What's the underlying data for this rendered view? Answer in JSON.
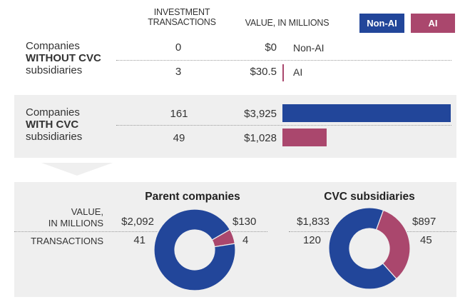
{
  "colors": {
    "non_ai": "#22469A",
    "ai": "#AA476D",
    "panel": "#EFEFEF"
  },
  "header": {
    "transactions_label_line1": "INVESTMENT",
    "transactions_label_line2": "TRANSACTIONS",
    "value_label": "VALUE, IN MILLIONS",
    "legend": [
      {
        "label": "Non-AI",
        "key": "non_ai"
      },
      {
        "label": "AI",
        "key": "ai"
      }
    ]
  },
  "groups": [
    {
      "label_line1": "Companies",
      "label_line2": "WITHOUT CVC",
      "label_line3": "subsidiaries",
      "rows": [
        {
          "category": "Non-AI",
          "transactions": "0",
          "value_text": "$0",
          "value": 0,
          "inline_label": "Non-AI"
        },
        {
          "category": "AI",
          "transactions": "3",
          "value_text": "$30.5",
          "value": 30.5,
          "inline_label": "AI"
        }
      ]
    },
    {
      "label_line1": "Companies",
      "label_line2": "WITH CVC",
      "label_line3": "subsidiaries",
      "rows": [
        {
          "category": "Non-AI",
          "transactions": "161",
          "value_text": "$3,925",
          "value": 3925
        },
        {
          "category": "AI",
          "transactions": "49",
          "value_text": "$1,028",
          "value": 1028
        }
      ]
    }
  ],
  "breakdown": {
    "value_label_line1": "VALUE,",
    "value_label_line2": "IN MILLIONS",
    "transactions_label": "TRANSACTIONS",
    "donuts": [
      {
        "title": "Parent companies",
        "non_ai": {
          "value_text": "$2,092",
          "value": 2092,
          "transactions": "41"
        },
        "ai": {
          "value_text": "$130",
          "value": 130,
          "transactions": "4"
        }
      },
      {
        "title": "CVC subsidiaries",
        "non_ai": {
          "value_text": "$1,833",
          "value": 1833,
          "transactions": "120"
        },
        "ai": {
          "value_text": "$897",
          "value": 897,
          "transactions": "45"
        }
      }
    ]
  },
  "chart_data": [
    {
      "type": "bar",
      "title": "Investment value by company type",
      "xlabel": "VALUE, IN MILLIONS",
      "categories": [
        "Companies WITHOUT CVC subsidiaries",
        "Companies WITH CVC subsidiaries"
      ],
      "series": [
        {
          "name": "Non-AI",
          "values": [
            0,
            3925
          ],
          "transactions": [
            0,
            161
          ]
        },
        {
          "name": "AI",
          "values": [
            30.5,
            1028
          ],
          "transactions": [
            3,
            49
          ]
        }
      ],
      "legend": "top-right"
    },
    {
      "type": "pie",
      "title": "Parent companies",
      "labels": [
        "Non-AI",
        "AI"
      ],
      "values": [
        2092,
        130
      ],
      "transactions": [
        41,
        4
      ]
    },
    {
      "type": "pie",
      "title": "CVC subsidiaries",
      "labels": [
        "Non-AI",
        "AI"
      ],
      "values": [
        1833,
        897
      ],
      "transactions": [
        120,
        45
      ]
    }
  ]
}
